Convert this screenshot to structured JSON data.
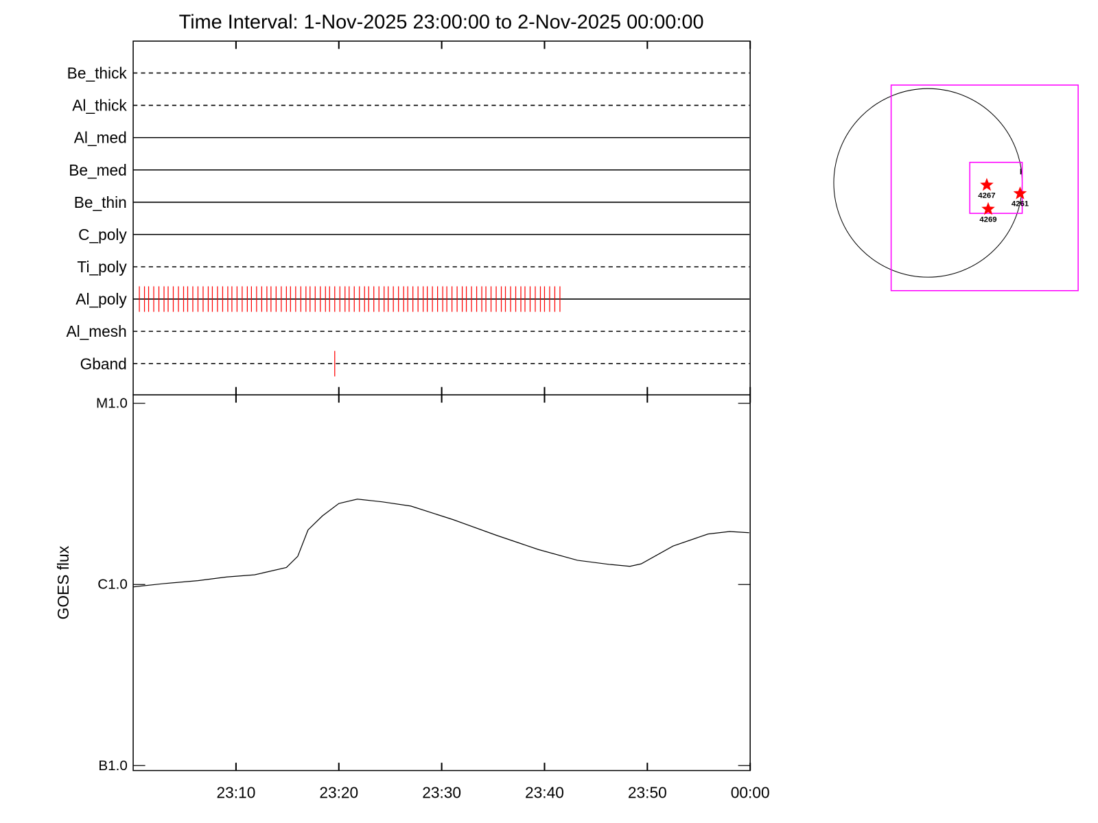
{
  "chart_data": [
    {
      "type": "event_timeline",
      "title": "Time Interval:  1-Nov-2025 23:00:00 to  2-Nov-2025 00:00:00",
      "xlim": [
        0,
        60
      ],
      "xticks": [
        {
          "value": 10,
          "label": "23:10"
        },
        {
          "value": 20,
          "label": "23:20"
        },
        {
          "value": 30,
          "label": "23:30"
        },
        {
          "value": 40,
          "label": "23:40"
        },
        {
          "value": 50,
          "label": "23:50"
        },
        {
          "value": 60,
          "label": "00:00"
        }
      ],
      "event_color": "#ff0000",
      "series": [
        {
          "name": "Be_thick",
          "line": "dashed",
          "values": []
        },
        {
          "name": "Al_thick",
          "line": "dashed",
          "values": []
        },
        {
          "name": "Al_med",
          "line": "solid",
          "values": []
        },
        {
          "name": "Be_med",
          "line": "solid",
          "values": []
        },
        {
          "name": "Be_thin",
          "line": "solid",
          "values": []
        },
        {
          "name": "C_poly",
          "line": "solid",
          "values": []
        },
        {
          "name": "Ti_poly",
          "line": "dashed",
          "values": []
        },
        {
          "name": "Al_poly",
          "line": "solid",
          "values": [
            0.6,
            1.1,
            1.5,
            2.0,
            2.5,
            3.0,
            3.4,
            3.9,
            4.4,
            4.9,
            5.3,
            5.8,
            6.3,
            6.8,
            7.3,
            7.7,
            8.2,
            8.7,
            9.2,
            9.6,
            10.1,
            10.6,
            11.1,
            11.5,
            12.0,
            12.5,
            13.0,
            13.4,
            13.9,
            14.4,
            14.9,
            15.3,
            15.8,
            16.3,
            16.8,
            17.2,
            17.7,
            18.2,
            18.7,
            19.1,
            19.6,
            20.1,
            20.6,
            21.0,
            21.5,
            22.0,
            22.5,
            22.9,
            23.4,
            23.9,
            24.4,
            24.8,
            25.3,
            25.8,
            26.3,
            26.7,
            27.2,
            27.7,
            28.2,
            28.6,
            29.1,
            29.6,
            30.1,
            30.5,
            31.0,
            31.5,
            32.0,
            32.4,
            32.9,
            33.4,
            33.9,
            34.3,
            34.8,
            35.3,
            35.8,
            36.2,
            36.7,
            37.2,
            37.7,
            38.1,
            38.6,
            39.1,
            39.6,
            40.0,
            40.5,
            41.0,
            41.5
          ]
        },
        {
          "name": "Al_mesh",
          "line": "dashed",
          "values": []
        },
        {
          "name": "Gband",
          "line": "dashed",
          "values": [
            19.6
          ]
        }
      ]
    },
    {
      "type": "line",
      "ylabel": "GOES flux",
      "color": "#000000",
      "ylog": true,
      "xlim": [
        0,
        60
      ],
      "xticks": [
        {
          "value": 10,
          "label": "23:10"
        },
        {
          "value": 20,
          "label": "23:20"
        },
        {
          "value": 30,
          "label": "23:30"
        },
        {
          "value": 40,
          "label": "23:40"
        },
        {
          "value": 50,
          "label": "23:50"
        },
        {
          "value": 60,
          "label": "00:00"
        }
      ],
      "ylim": [
        1e-07,
        1e-05
      ],
      "yticks": [
        {
          "value": 1e-05,
          "label": "M1.0"
        },
        {
          "value": 1e-06,
          "label": "C1.0"
        },
        {
          "value": 1e-07,
          "label": "B1.0"
        }
      ],
      "x": [
        0,
        2.9,
        6.3,
        9.1,
        11.8,
        14.9,
        16.0,
        17.0,
        18.4,
        20.0,
        21.8,
        24.2,
        27.0,
        31.1,
        35.3,
        39.4,
        43.2,
        46.3,
        48.3,
        49.4,
        52.5,
        55.9,
        58.0,
        59.9
      ],
      "values": [
        9.7e-07,
        1.01e-06,
        1.05e-06,
        1.1e-06,
        1.13e-06,
        1.24e-06,
        1.43e-06,
        2e-06,
        2.39e-06,
        2.8e-06,
        2.96e-06,
        2.86e-06,
        2.71e-06,
        2.28e-06,
        1.87e-06,
        1.56e-06,
        1.36e-06,
        1.29e-06,
        1.26e-06,
        1.3e-06,
        1.63e-06,
        1.9e-06,
        1.96e-06,
        1.93e-06
      ]
    },
    {
      "type": "map",
      "color": "#ff0000",
      "box_color": "#ff00ff",
      "regions": [
        {
          "label": "4267"
        },
        {
          "label": "4261"
        },
        {
          "label": "4269"
        }
      ]
    }
  ]
}
